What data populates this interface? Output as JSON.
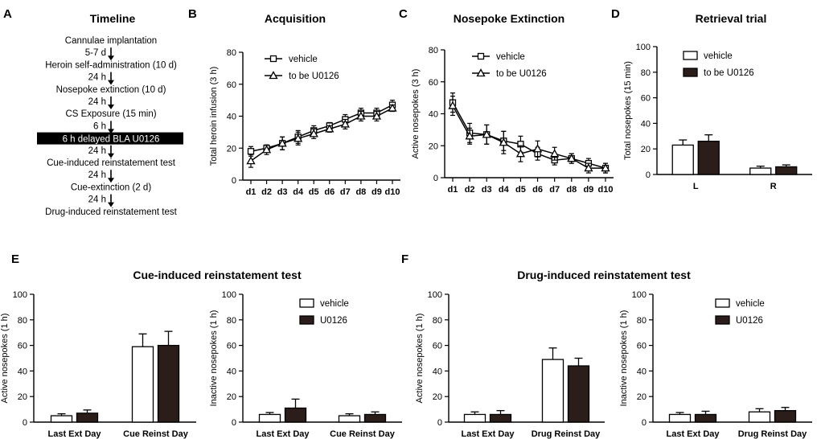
{
  "panel_letters": {
    "a": "A",
    "b": "B",
    "c": "C",
    "d": "D",
    "e": "E",
    "f": "F"
  },
  "timeline": {
    "title": "Timeline",
    "steps": [
      "Cannulae implantation",
      "5-7 d",
      "Heroin self-administration (10 d)",
      "24 h",
      "Nosepoke extinction (10 d)",
      "24 h",
      "CS Exposure (15 min)",
      "6 h",
      "6 h delayed BLA U0126",
      "24 h",
      "Cue-induced reinstatement test",
      "24 h",
      "Cue-extinction (2 d)",
      "24 h",
      "Drug-induced reinstatement test"
    ]
  },
  "colors": {
    "dark_bar": "#2b1d1a",
    "open_bar": "#ffffff",
    "line": "#000000",
    "box": "#000000"
  },
  "chart_data": [
    {
      "id": "acquisition",
      "type": "line",
      "title": "Acquisition",
      "xlabel": "",
      "ylabel": "Total heroin infusion (3 h)",
      "categories": [
        "d1",
        "d2",
        "d3",
        "d4",
        "d5",
        "d6",
        "d7",
        "d8",
        "d9",
        "d10"
      ],
      "ylim": [
        0,
        80
      ],
      "yticks": [
        0,
        20,
        40,
        60,
        80
      ],
      "legend": "top-left",
      "series": [
        {
          "name": "vehicle",
          "marker": "square",
          "values": [
            18,
            20,
            23,
            27,
            31,
            34,
            38,
            42,
            42,
            47
          ],
          "errors": [
            3,
            2,
            4,
            4,
            3,
            2,
            3,
            3,
            3,
            3
          ]
        },
        {
          "name": "to be U0126",
          "marker": "triangle",
          "values": [
            12,
            19,
            23,
            26,
            29,
            32,
            35,
            40,
            40,
            45
          ],
          "errors": [
            4,
            3,
            4,
            4,
            3,
            2,
            3,
            3,
            3,
            2
          ]
        }
      ]
    },
    {
      "id": "nosepoke_extinction",
      "type": "line",
      "title": "Nosepoke Extinction",
      "xlabel": "",
      "ylabel": "Active nosepokes (3 h)",
      "categories": [
        "d1",
        "d2",
        "d3",
        "d4",
        "d5",
        "d6",
        "d7",
        "d8",
        "d9",
        "d10"
      ],
      "ylim": [
        0,
        80
      ],
      "yticks": [
        0,
        20,
        40,
        60,
        80
      ],
      "legend": "top-right",
      "series": [
        {
          "name": "vehicle",
          "marker": "square",
          "values": [
            47,
            28,
            27,
            23,
            21,
            15,
            11,
            12,
            9,
            6
          ],
          "errors": [
            6,
            6,
            6,
            6,
            5,
            4,
            3,
            3,
            3,
            3
          ]
        },
        {
          "name": "to be U0126",
          "marker": "triangle",
          "values": [
            45,
            26,
            27,
            22,
            15,
            18,
            15,
            12,
            6,
            6
          ],
          "errors": [
            6,
            5,
            6,
            7,
            5,
            5,
            4,
            3,
            3,
            3
          ]
        }
      ]
    },
    {
      "id": "retrieval_trial",
      "type": "bar",
      "title": "Retrieval trial",
      "xlabel": "",
      "ylabel": "Total nosepokes (15 min)",
      "categories": [
        "L",
        "R"
      ],
      "ylim": [
        0,
        100
      ],
      "yticks": [
        0,
        20,
        40,
        60,
        80,
        100
      ],
      "legend": "top-right",
      "series": [
        {
          "name": "vehicle",
          "fill": "open",
          "values": [
            23,
            5
          ],
          "errors": [
            4,
            1.5
          ]
        },
        {
          "name": "to be U0126",
          "fill": "dark",
          "values": [
            26,
            6
          ],
          "errors": [
            5,
            1.5
          ]
        }
      ]
    },
    {
      "id": "cue_active",
      "type": "bar",
      "title": "Cue-induced reinstatement test",
      "xlabel": "",
      "ylabel": "Active nosepokes (1 h)",
      "categories": [
        "Last Ext Day",
        "Cue Reinst Day"
      ],
      "ylim": [
        0,
        100
      ],
      "yticks": [
        0,
        20,
        40,
        60,
        80,
        100
      ],
      "legend": "none",
      "series": [
        {
          "name": "vehicle",
          "fill": "open",
          "values": [
            5,
            59
          ],
          "errors": [
            1.5,
            10
          ]
        },
        {
          "name": "U0126",
          "fill": "dark",
          "values": [
            7,
            60
          ],
          "errors": [
            2.5,
            11
          ]
        }
      ]
    },
    {
      "id": "cue_inactive",
      "type": "bar",
      "title": "",
      "xlabel": "",
      "ylabel": "Inactive nosepokes (1 h)",
      "categories": [
        "Last Ext Day",
        "Cue Reinst Day"
      ],
      "ylim": [
        0,
        100
      ],
      "yticks": [
        0,
        20,
        40,
        60,
        80,
        100
      ],
      "legend": "top-right",
      "series": [
        {
          "name": "vehicle",
          "fill": "open",
          "values": [
            6,
            5
          ],
          "errors": [
            1.5,
            1.5
          ]
        },
        {
          "name": "U0126",
          "fill": "dark",
          "values": [
            11,
            6
          ],
          "errors": [
            7,
            2
          ]
        }
      ]
    },
    {
      "id": "drug_active",
      "type": "bar",
      "title": "Drug-induced reinstatement test",
      "xlabel": "",
      "ylabel": "Active nosepokes (1 h)",
      "categories": [
        "Last Ext Day",
        "Drug Reinst Day"
      ],
      "ylim": [
        0,
        100
      ],
      "yticks": [
        0,
        20,
        40,
        60,
        80,
        100
      ],
      "legend": "none",
      "series": [
        {
          "name": "vehicle",
          "fill": "open",
          "values": [
            6,
            49
          ],
          "errors": [
            2,
            9
          ]
        },
        {
          "name": "U0126",
          "fill": "dark",
          "values": [
            6,
            44
          ],
          "errors": [
            3,
            6
          ]
        }
      ]
    },
    {
      "id": "drug_inactive",
      "type": "bar",
      "title": "",
      "xlabel": "",
      "ylabel": "Inactive nosepokes (1 h)",
      "categories": [
        "Last Ext Day",
        "Drug Reinst Day"
      ],
      "ylim": [
        0,
        100
      ],
      "yticks": [
        0,
        20,
        40,
        60,
        80,
        100
      ],
      "legend": "top-right",
      "series": [
        {
          "name": "vehicle",
          "fill": "open",
          "values": [
            6,
            8
          ],
          "errors": [
            1.5,
            2.5
          ]
        },
        {
          "name": "U0126",
          "fill": "dark",
          "values": [
            6,
            9
          ],
          "errors": [
            2.5,
            2.5
          ]
        }
      ]
    }
  ]
}
